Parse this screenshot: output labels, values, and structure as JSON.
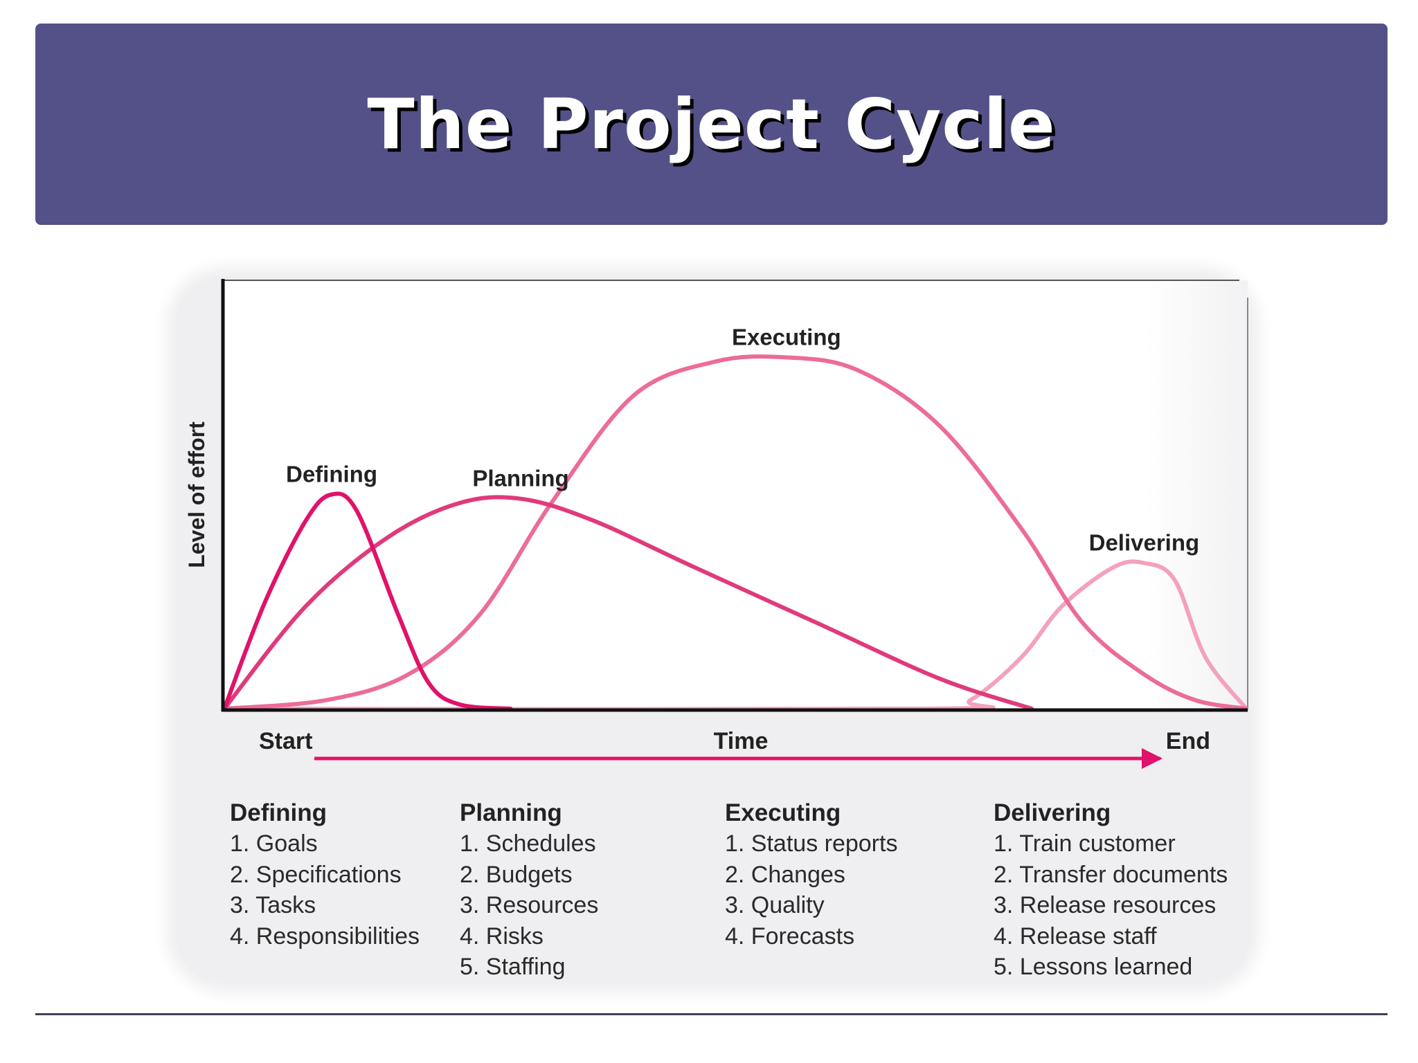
{
  "slide": {
    "title": "The Project Cycle"
  },
  "chart_data": {
    "type": "line",
    "ylabel": "Level of effort",
    "xlabel": "Time",
    "x_start_label": "Start",
    "x_end_label": "End",
    "xlim": [
      0,
      100
    ],
    "ylim": [
      0,
      100
    ],
    "series": [
      {
        "name": "Defining",
        "color": "#e0126a",
        "x": [
          0,
          4,
          8,
          10.5,
          13,
          17,
          20,
          23,
          28
        ],
        "y": [
          0,
          25,
          44,
          50,
          46,
          22,
          6,
          1,
          0
        ]
      },
      {
        "name": "Planning",
        "color": "#e03a7c",
        "x": [
          0,
          8,
          16,
          23,
          29,
          36,
          46,
          58,
          70,
          79
        ],
        "y": [
          0,
          24,
          40,
          48,
          49,
          44,
          33,
          20,
          7,
          0
        ]
      },
      {
        "name": "Executing",
        "color": "#ec6c98",
        "x": [
          0,
          10,
          18,
          25,
          32,
          40,
          48,
          55,
          62,
          70,
          78,
          84,
          90,
          95,
          100
        ],
        "y": [
          0,
          2,
          8,
          22,
          48,
          73,
          81,
          82,
          79,
          66,
          42,
          20,
          8,
          2,
          0
        ]
      },
      {
        "name": "Delivering",
        "color": "#f4a1bd",
        "x": [
          0,
          69,
          73,
          78,
          82,
          87,
          90,
          93,
          96,
          100
        ],
        "y": [
          0,
          0,
          2,
          12,
          24,
          33,
          34,
          30,
          12,
          0
        ]
      }
    ]
  },
  "phases": [
    {
      "title": "Defining",
      "items": [
        "1. Goals",
        "2. Specifications",
        "3. Tasks",
        "4. Responsibilities"
      ]
    },
    {
      "title": "Planning",
      "items": [
        "1. Schedules",
        "2. Budgets",
        "3. Resources",
        "4. Risks",
        "5. Staffing"
      ]
    },
    {
      "title": "Executing",
      "items": [
        "1. Status reports",
        "2. Changes",
        "3. Quality",
        "4. Forecasts"
      ]
    },
    {
      "title": "Delivering",
      "items": [
        "1. Train customer",
        "2. Transfer documents",
        "3. Release resources",
        "4. Release staff",
        "5. Lessons learned"
      ]
    }
  ]
}
